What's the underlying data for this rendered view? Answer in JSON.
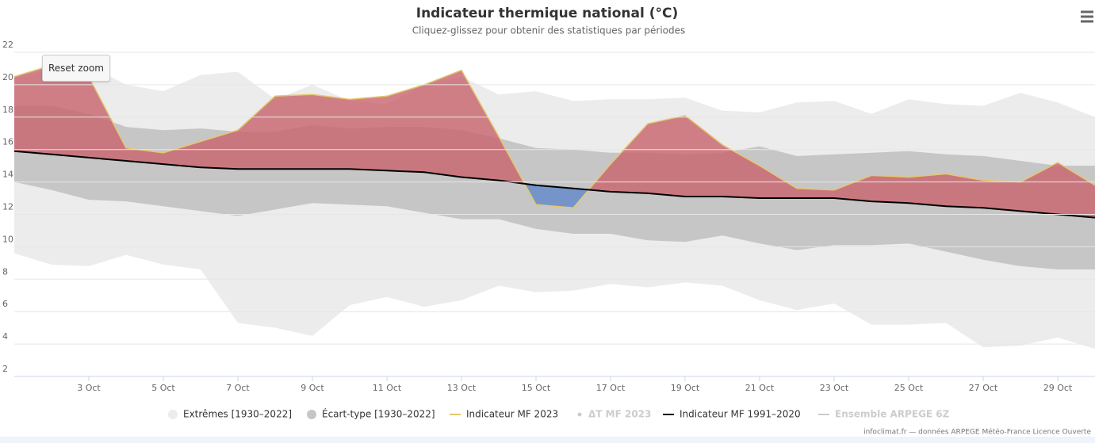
{
  "chart_data": {
    "type": "area",
    "title": "Indicateur thermique national (°C)",
    "subtitle": "Cliquez-glissez pour obtenir des statistiques par périodes",
    "reset_zoom": "Reset zoom",
    "credits": "infoclimat.fr — données ARPEGE Météo-France Licence Ouverte",
    "x": [
      1,
      2,
      3,
      4,
      5,
      6,
      7,
      8,
      9,
      10,
      11,
      12,
      13,
      14,
      15,
      16,
      17,
      18,
      19,
      20,
      21,
      22,
      23,
      24,
      25,
      26,
      27,
      28,
      29,
      30
    ],
    "xlim": [
      1,
      30
    ],
    "xticks": [
      {
        "value": 3,
        "label": "3 Oct"
      },
      {
        "value": 5,
        "label": "5 Oct"
      },
      {
        "value": 7,
        "label": "7 Oct"
      },
      {
        "value": 9,
        "label": "9 Oct"
      },
      {
        "value": 11,
        "label": "11 Oct"
      },
      {
        "value": 13,
        "label": "13 Oct"
      },
      {
        "value": 15,
        "label": "15 Oct"
      },
      {
        "value": 17,
        "label": "17 Oct"
      },
      {
        "value": 19,
        "label": "19 Oct"
      },
      {
        "value": 21,
        "label": "21 Oct"
      },
      {
        "value": 23,
        "label": "23 Oct"
      },
      {
        "value": 25,
        "label": "25 Oct"
      },
      {
        "value": 27,
        "label": "27 Oct"
      },
      {
        "value": 29,
        "label": "29 Oct"
      }
    ],
    "ylim": [
      2,
      22
    ],
    "yticks": [
      2,
      4,
      6,
      8,
      10,
      12,
      14,
      16,
      18,
      20,
      22
    ],
    "grid": true,
    "above_color": "#c9636d",
    "below_color": "#6b8fca",
    "series": [
      {
        "name": "Extrêmes [1930–2022]",
        "kind": "range",
        "color": "#ececec",
        "low": [
          9.6,
          8.9,
          8.8,
          9.5,
          8.9,
          8.6,
          5.3,
          5.0,
          4.5,
          6.4,
          6.9,
          6.3,
          6.7,
          7.6,
          7.2,
          7.3,
          7.7,
          7.5,
          7.8,
          7.6,
          6.7,
          6.1,
          6.5,
          5.2,
          5.2,
          5.3,
          3.8,
          3.9,
          4.4,
          3.7
        ],
        "high": [
          20.4,
          21.0,
          21.2,
          20.0,
          19.6,
          20.6,
          20.8,
          19.1,
          20.0,
          19.0,
          18.8,
          20.0,
          20.5,
          19.4,
          19.6,
          19.0,
          19.1,
          19.1,
          19.2,
          18.4,
          18.3,
          18.9,
          19.0,
          18.2,
          19.1,
          18.8,
          18.7,
          19.5,
          18.9,
          18.0
        ]
      },
      {
        "name": "Écart-type [1930–2022]",
        "kind": "range",
        "color": "#c6c6c6",
        "low": [
          14.0,
          13.5,
          12.9,
          12.8,
          12.5,
          12.2,
          11.9,
          12.3,
          12.7,
          12.6,
          12.5,
          12.1,
          11.7,
          11.7,
          11.1,
          10.8,
          10.8,
          10.4,
          10.3,
          10.7,
          10.2,
          9.8,
          10.1,
          10.1,
          10.2,
          9.7,
          9.2,
          8.8,
          8.6,
          8.6
        ],
        "high": [
          18.7,
          18.7,
          18.2,
          17.4,
          17.2,
          17.3,
          17.1,
          17.1,
          17.5,
          17.3,
          17.4,
          17.4,
          17.2,
          16.7,
          16.1,
          16.0,
          15.8,
          15.8,
          15.7,
          15.8,
          16.2,
          15.6,
          15.7,
          15.8,
          15.9,
          15.7,
          15.6,
          15.3,
          15.0,
          15.0
        ]
      },
      {
        "name": "Indicateur MF 2023",
        "kind": "anomaly-line",
        "color": "#e3c86e",
        "values": [
          20.5,
          21.2,
          20.5,
          16.1,
          15.8,
          16.5,
          17.2,
          19.3,
          19.4,
          19.1,
          19.3,
          20.0,
          20.9,
          16.8,
          12.6,
          12.4,
          15.1,
          17.6,
          18.1,
          16.3,
          15.0,
          13.6,
          13.5,
          14.4,
          14.3,
          14.5,
          14.1,
          14.0,
          15.2,
          13.8
        ]
      },
      {
        "name": "ΔT MF 2023",
        "kind": "hidden",
        "color": "#cccccc"
      },
      {
        "name": "Indicateur MF 1991–2020",
        "kind": "line",
        "color": "#000000",
        "values": [
          15.9,
          15.7,
          15.5,
          15.3,
          15.1,
          14.9,
          14.8,
          14.8,
          14.8,
          14.8,
          14.7,
          14.6,
          14.3,
          14.1,
          13.8,
          13.6,
          13.4,
          13.3,
          13.1,
          13.1,
          13.0,
          13.0,
          13.0,
          12.8,
          12.7,
          12.5,
          12.4,
          12.2,
          12.0,
          11.8
        ]
      },
      {
        "name": "Ensemble ARPEGE 6Z",
        "kind": "hidden",
        "color": "#cccccc"
      }
    ]
  }
}
